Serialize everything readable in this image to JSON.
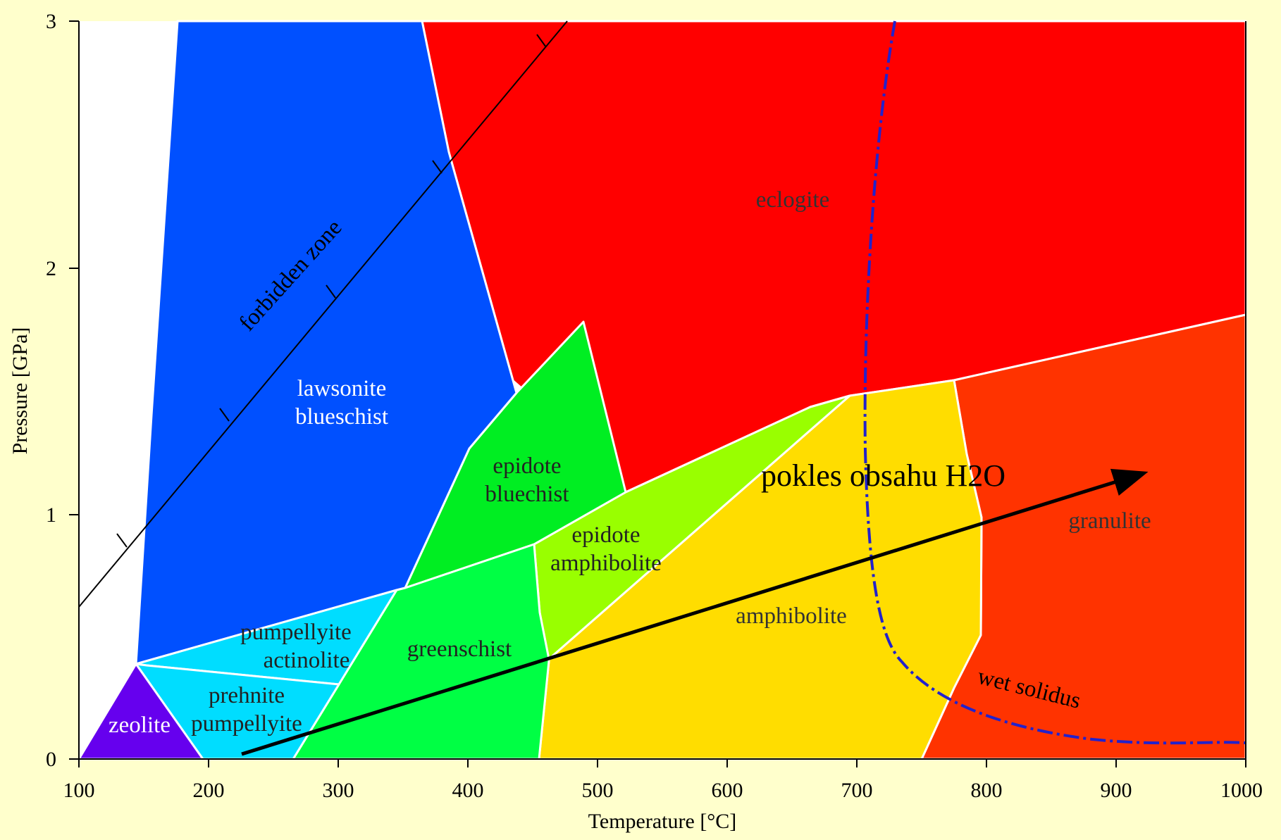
{
  "axes": {
    "x_label": "Temperature [°C]",
    "y_label": "Pressure [GPa]",
    "x_ticks": [
      "100",
      "200",
      "300",
      "400",
      "500",
      "600",
      "700",
      "800",
      "900",
      "1000"
    ],
    "y_ticks": [
      "0",
      "1",
      "2",
      "3"
    ],
    "x_range": [
      100,
      1000
    ],
    "y_range": [
      0,
      3
    ]
  },
  "facies": {
    "zeolite": "zeolite",
    "prehnite_pumpellyite": [
      "prehnite",
      "pumpellyite"
    ],
    "pumpellyite_actinolite": [
      "pumpellyite",
      "actinolite"
    ],
    "lawsonite_blueschist": [
      "lawsonite",
      "blueschist"
    ],
    "epidote_blueschist": [
      "epidote",
      "bluechist"
    ],
    "greenschist": "greenschist",
    "epidote_amphibolite": [
      "epidote",
      "amphibolite"
    ],
    "amphibolite": "amphibolite",
    "eclogite": "eclogite",
    "granulite": "granulite"
  },
  "curves": {
    "forbidden_zone": "forbidden zone",
    "wet_solidus": "wet solidus"
  },
  "annotation": {
    "text": "pokles obsahu H2O"
  },
  "colors": {
    "background": "#ffffcc",
    "zeolite": "#6600ee",
    "prehnite_pumpellyite": "#00ddff",
    "pumpellyite_actinolite": "#00ddff",
    "lawsonite_blueschist": "#0050ff",
    "epidote_blueschist": "#00ee22",
    "greenschist": "#00ff44",
    "epidote_amphibolite": "#99ff00",
    "amphibolite": "#ffdd00",
    "eclogite": "#ff0000",
    "granulite": "#ff3300",
    "wet_solidus": "#2222cc"
  }
}
